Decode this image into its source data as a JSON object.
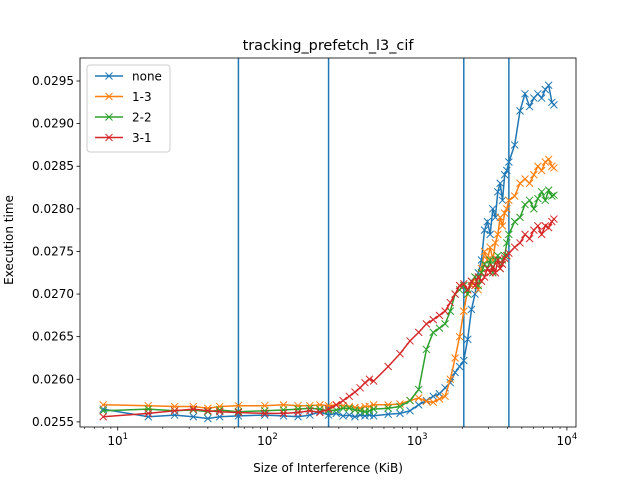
{
  "chart_data": {
    "type": "line",
    "title": "tracking_prefetch_l3_cif",
    "xlabel": "Size of Interference (KiB)",
    "ylabel": "Execution time",
    "xscale": "log",
    "xlim": [
      5.6,
      11500
    ],
    "ylim": [
      0.02544,
      0.02977
    ],
    "x_ticks": [
      {
        "value": 10,
        "base": "10",
        "exp": "1"
      },
      {
        "value": 100,
        "base": "10",
        "exp": "2"
      },
      {
        "value": 1000,
        "base": "10",
        "exp": "3"
      },
      {
        "value": 10000,
        "base": "10",
        "exp": "4"
      }
    ],
    "y_ticks": [
      {
        "value": 0.0255,
        "label": "0.0255"
      },
      {
        "value": 0.026,
        "label": "0.0260"
      },
      {
        "value": 0.0265,
        "label": "0.0265"
      },
      {
        "value": 0.027,
        "label": "0.0270"
      },
      {
        "value": 0.0275,
        "label": "0.0275"
      },
      {
        "value": 0.028,
        "label": "0.0280"
      },
      {
        "value": 0.0285,
        "label": "0.0285"
      },
      {
        "value": 0.029,
        "label": "0.0290"
      },
      {
        "value": 0.0295,
        "label": "0.0295"
      }
    ],
    "vlines": [
      64,
      256,
      2048,
      4096
    ],
    "vline_color": "#1f77b4",
    "legend_position": "upper-left",
    "x": [
      8,
      16,
      24,
      32,
      40,
      48,
      64,
      96,
      128,
      160,
      192,
      224,
      256,
      288,
      320,
      352,
      384,
      416,
      448,
      480,
      512,
      640,
      768,
      896,
      1024,
      1152,
      1280,
      1408,
      1536,
      1664,
      1792,
      1920,
      2048,
      2176,
      2304,
      2432,
      2560,
      2688,
      2816,
      2944,
      3072,
      3200,
      3328,
      3456,
      3584,
      3712,
      3840,
      3968,
      4096,
      4480,
      4864,
      5248,
      5632,
      6016,
      6400,
      6784,
      7168,
      7552,
      7936,
      8192
    ],
    "series": [
      {
        "name": "none",
        "color": "#1f77b4",
        "values": [
          0.02565,
          0.02556,
          0.02558,
          0.02556,
          0.02554,
          0.02556,
          0.02557,
          0.02558,
          0.02557,
          0.02556,
          0.02558,
          0.02562,
          0.02558,
          0.0256,
          0.02557,
          0.02558,
          0.02556,
          0.02558,
          0.02557,
          0.02558,
          0.02557,
          0.02559,
          0.0256,
          0.02563,
          0.0257,
          0.02575,
          0.0258,
          0.02583,
          0.0259,
          0.02596,
          0.02608,
          0.02615,
          0.02622,
          0.02647,
          0.02682,
          0.027,
          0.02725,
          0.0274,
          0.02775,
          0.02785,
          0.0277,
          0.028,
          0.0279,
          0.0282,
          0.0283,
          0.0281,
          0.0284,
          0.02845,
          0.02855,
          0.02875,
          0.02915,
          0.02935,
          0.0292,
          0.0293,
          0.02935,
          0.0293,
          0.0294,
          0.02945,
          0.02925,
          0.02922
        ]
      },
      {
        "name": "1-3",
        "color": "#ff7f0e",
        "values": [
          0.0257,
          0.02569,
          0.02568,
          0.02568,
          0.02566,
          0.02568,
          0.02569,
          0.02569,
          0.0257,
          0.02569,
          0.02569,
          0.0257,
          0.02569,
          0.0257,
          0.02569,
          0.02568,
          0.02567,
          0.02566,
          0.02568,
          0.02568,
          0.0257,
          0.0257,
          0.02571,
          0.02575,
          0.02578,
          0.02574,
          0.02573,
          0.02577,
          0.0258,
          0.026,
          0.02625,
          0.0265,
          0.0268,
          0.02705,
          0.0271,
          0.0272,
          0.02705,
          0.0273,
          0.0275,
          0.0274,
          0.02755,
          0.0274,
          0.0276,
          0.0277,
          0.0279,
          0.0278,
          0.02795,
          0.028,
          0.0281,
          0.02815,
          0.0283,
          0.02835,
          0.0283,
          0.0284,
          0.0285,
          0.02845,
          0.02855,
          0.02858,
          0.0285,
          0.02848
        ]
      },
      {
        "name": "2-2",
        "color": "#2ca02c",
        "values": [
          0.02563,
          0.02565,
          0.02563,
          0.02564,
          0.02562,
          0.02564,
          0.02562,
          0.02563,
          0.02564,
          0.02565,
          0.02566,
          0.02565,
          0.02563,
          0.02564,
          0.02566,
          0.02566,
          0.02564,
          0.02563,
          0.02562,
          0.02563,
          0.02565,
          0.02566,
          0.02568,
          0.02575,
          0.02588,
          0.02635,
          0.02655,
          0.0266,
          0.02665,
          0.0268,
          0.027,
          0.02705,
          0.0271,
          0.027,
          0.02715,
          0.0272,
          0.0271,
          0.02725,
          0.02735,
          0.0273,
          0.0274,
          0.02725,
          0.0274,
          0.02745,
          0.0273,
          0.0274,
          0.02745,
          0.0276,
          0.0277,
          0.02785,
          0.0279,
          0.02805,
          0.0281,
          0.028,
          0.02812,
          0.0282,
          0.0281,
          0.02822,
          0.02815,
          0.02816
        ]
      },
      {
        "name": "3-1",
        "color": "#d62728",
        "values": [
          0.02556,
          0.0256,
          0.02563,
          0.02565,
          0.02563,
          0.02562,
          0.02561,
          0.0256,
          0.0256,
          0.02561,
          0.02563,
          0.02561,
          0.02565,
          0.0257,
          0.02575,
          0.0258,
          0.02585,
          0.0259,
          0.02596,
          0.026,
          0.02598,
          0.02615,
          0.0263,
          0.02645,
          0.02655,
          0.02665,
          0.0267,
          0.02675,
          0.0268,
          0.0269,
          0.027,
          0.0271,
          0.02712,
          0.02705,
          0.02715,
          0.0271,
          0.0272,
          0.02715,
          0.0272,
          0.0273,
          0.02725,
          0.02732,
          0.02725,
          0.0274,
          0.0273,
          0.02735,
          0.02742,
          0.02745,
          0.02748,
          0.02755,
          0.0276,
          0.0277,
          0.02765,
          0.02775,
          0.0278,
          0.0277,
          0.0278,
          0.02778,
          0.02785,
          0.02788
        ]
      }
    ]
  }
}
